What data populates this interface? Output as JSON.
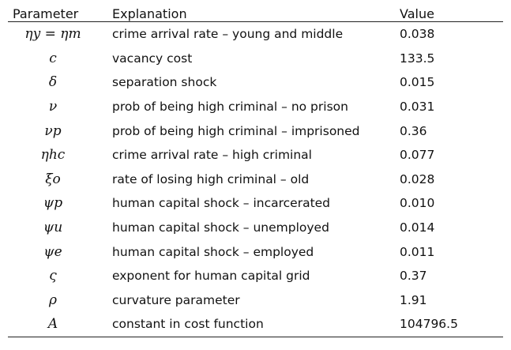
{
  "table": {
    "headers": {
      "parameter": "Parameter",
      "explanation": "Explanation",
      "value": "Value"
    },
    "rows": [
      {
        "symbol": "ηy = ηm",
        "explanation": "crime arrival rate – young and middle",
        "value": "0.038"
      },
      {
        "symbol": "c",
        "explanation": "vacancy cost",
        "value": "133.5"
      },
      {
        "symbol": "δ",
        "explanation": "separation shock",
        "value": "0.015"
      },
      {
        "symbol": "ν",
        "explanation": "prob of being high criminal – no prison",
        "value": "0.031"
      },
      {
        "symbol": "νp",
        "explanation": "prob of being high criminal – imprisoned",
        "value": "0.36"
      },
      {
        "symbol": "ηhc",
        "explanation": "crime arrival rate – high criminal",
        "value": "0.077"
      },
      {
        "symbol": "ξo",
        "explanation": "rate of losing high criminal – old",
        "value": "0.028"
      },
      {
        "symbol": "ψp",
        "explanation": "human capital shock – incarcerated",
        "value": "0.010"
      },
      {
        "symbol": "ψu",
        "explanation": "human capital shock – unemployed",
        "value": "0.014"
      },
      {
        "symbol": "ψe",
        "explanation": "human capital shock – employed",
        "value": "0.011"
      },
      {
        "symbol": "ς",
        "explanation": "exponent for human capital grid",
        "value": "0.37"
      },
      {
        "symbol": "ρ",
        "explanation": "curvature parameter",
        "value": "1.91"
      },
      {
        "symbol": "A",
        "explanation": "constant in cost function",
        "value": "104796.5"
      }
    ]
  }
}
